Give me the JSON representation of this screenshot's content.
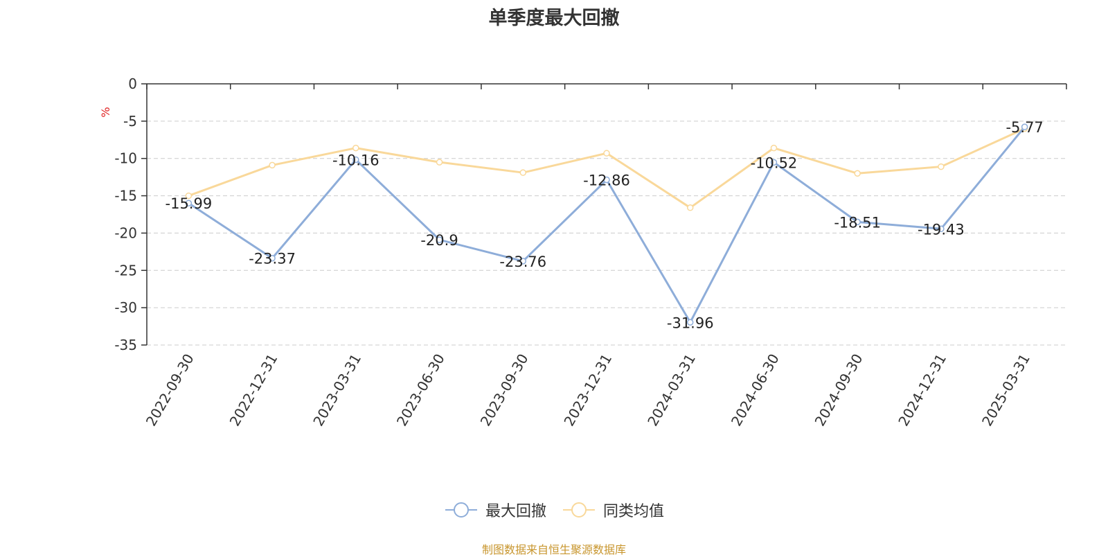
{
  "chart_data": {
    "type": "line",
    "title": "单季度最大回撤",
    "ylabel": "%",
    "xlabel": "",
    "ylim": [
      -35,
      0
    ],
    "yticks": [
      0,
      -5,
      -10,
      -15,
      -20,
      -25,
      -30,
      -35
    ],
    "grid": true,
    "legend_position": "bottom-center",
    "categories": [
      "2022-09-30",
      "2022-12-31",
      "2023-03-31",
      "2023-06-30",
      "2023-09-30",
      "2023-12-31",
      "2024-03-31",
      "2024-06-30",
      "2024-09-30",
      "2024-12-31",
      "2025-03-31"
    ],
    "series": [
      {
        "name": "最大回撤",
        "color": "#8eadd9",
        "values": [
          -15.99,
          -23.37,
          -10.16,
          -20.9,
          -23.76,
          -12.86,
          -31.96,
          -10.52,
          -18.51,
          -19.43,
          -5.77
        ],
        "data_labels": [
          "-15.99",
          "-23.37",
          "-10.16",
          "-20.9",
          "-23.76",
          "-12.86",
          "-31.96",
          "-10.52",
          "-18.51",
          "-19.43",
          "-5.77"
        ]
      },
      {
        "name": "同类均值",
        "color": "#f9d89a",
        "values": [
          -15.0,
          -10.9,
          -8.6,
          -10.5,
          -11.9,
          -9.3,
          -16.6,
          -8.6,
          -12.0,
          -11.1,
          -6.0
        ]
      }
    ]
  },
  "source_note": "制图数据来自恒生聚源数据库"
}
